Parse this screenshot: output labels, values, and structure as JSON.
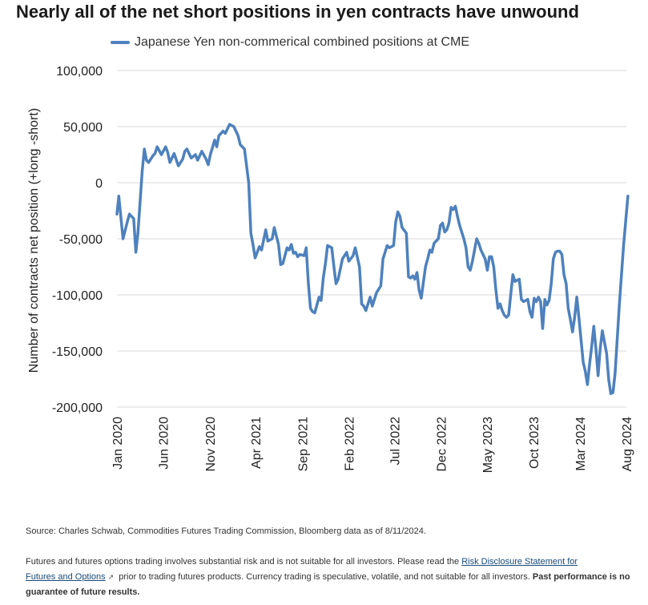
{
  "title": "Nearly all of the net short positions in yen contracts have unwound",
  "legend": "Japanese Yen non-commerical combined positions at CME",
  "source": "Source: Charles Schwab, Commodities Futures Trading Commission, Bloomberg data as of 8/11/2024.",
  "disclaimer": {
    "text1": "Futures and futures options trading involves substantial risk and is not suitable for all investors. Please read the ",
    "link1": "Risk Disclosure Statement for",
    "link2": "Futures and Options",
    "text2": " prior to trading futures products. Currency trading is speculative, volatile, and not suitable for all investors. ",
    "bold": "Past performance is no guarantee of future results.",
    "ext_icon": "external-link-icon"
  },
  "colors": {
    "line": "#4e81bd",
    "grid": "#d9d9d9"
  },
  "chart_data": {
    "type": "line",
    "ylabel": "Number of contracts net position (+long  -short)",
    "ylim": [
      -200000,
      100000
    ],
    "yticks": [
      {
        "v": 100000,
        "label": "100,000"
      },
      {
        "v": 50000,
        "label": "50,000"
      },
      {
        "v": 0,
        "label": "0"
      },
      {
        "v": -50000,
        "label": "-50,000"
      },
      {
        "v": -100000,
        "label": "-100,000"
      },
      {
        "v": -150000,
        "label": "-150,000"
      },
      {
        "v": -200000,
        "label": "-200,000"
      }
    ],
    "xrange": [
      "2020-01",
      "2024-08"
    ],
    "xticks": [
      {
        "date": "2020-01",
        "label": "Jan 2020"
      },
      {
        "date": "2020-06",
        "label": "Jun 2020"
      },
      {
        "date": "2020-11",
        "label": "Nov 2020"
      },
      {
        "date": "2021-04",
        "label": "Apr 2021"
      },
      {
        "date": "2021-09",
        "label": "Sep 2021"
      },
      {
        "date": "2022-02",
        "label": "Feb 2022"
      },
      {
        "date": "2022-07",
        "label": "Jul 2022"
      },
      {
        "date": "2022-12",
        "label": "Dec 2022"
      },
      {
        "date": "2023-05",
        "label": "May 2023"
      },
      {
        "date": "2023-10",
        "label": "Oct 2023"
      },
      {
        "date": "2024-03",
        "label": "Mar 2024"
      },
      {
        "date": "2024-08",
        "label": "Aug 2024"
      }
    ],
    "grid": "horizontal",
    "legend_position": "top",
    "series": [
      {
        "name": "Japanese Yen non-commerical combined positions at CME",
        "points": [
          [
            "2020-01-01",
            -28000
          ],
          [
            "2020-01-07",
            -12000
          ],
          [
            "2020-01-21",
            -50000
          ],
          [
            "2020-02-04",
            -35000
          ],
          [
            "2020-02-11",
            -28000
          ],
          [
            "2020-02-25",
            -32000
          ],
          [
            "2020-03-03",
            -62000
          ],
          [
            "2020-03-10",
            -45000
          ],
          [
            "2020-03-24",
            10000
          ],
          [
            "2020-03-31",
            30000
          ],
          [
            "2020-04-07",
            20000
          ],
          [
            "2020-04-14",
            18000
          ],
          [
            "2020-04-28",
            24000
          ],
          [
            "2020-05-05",
            26000
          ],
          [
            "2020-05-12",
            32000
          ],
          [
            "2020-05-26",
            25000
          ],
          [
            "2020-06-09",
            32000
          ],
          [
            "2020-06-16",
            27000
          ],
          [
            "2020-06-23",
            18000
          ],
          [
            "2020-07-07",
            26000
          ],
          [
            "2020-07-21",
            15000
          ],
          [
            "2020-08-04",
            21000
          ],
          [
            "2020-08-11",
            28000
          ],
          [
            "2020-08-18",
            30000
          ],
          [
            "2020-09-01",
            22000
          ],
          [
            "2020-09-15",
            25000
          ],
          [
            "2020-09-22",
            20000
          ],
          [
            "2020-10-06",
            28000
          ],
          [
            "2020-10-20",
            21000
          ],
          [
            "2020-10-27",
            16000
          ],
          [
            "2020-11-03",
            25000
          ],
          [
            "2020-11-17",
            38000
          ],
          [
            "2020-11-24",
            32000
          ],
          [
            "2020-12-01",
            42000
          ],
          [
            "2020-12-15",
            46000
          ],
          [
            "2020-12-22",
            44000
          ],
          [
            "2021-01-05",
            52000
          ],
          [
            "2021-01-19",
            50000
          ],
          [
            "2021-02-02",
            42000
          ],
          [
            "2021-02-09",
            34000
          ],
          [
            "2021-02-23",
            30000
          ],
          [
            "2021-03-09",
            0
          ],
          [
            "2021-03-16",
            -45000
          ],
          [
            "2021-03-23",
            -55000
          ],
          [
            "2021-03-30",
            -67000
          ],
          [
            "2021-04-13",
            -57000
          ],
          [
            "2021-04-20",
            -60000
          ],
          [
            "2021-05-04",
            -42000
          ],
          [
            "2021-05-11",
            -52000
          ],
          [
            "2021-05-25",
            -50000
          ],
          [
            "2021-06-01",
            -40000
          ],
          [
            "2021-06-15",
            -55000
          ],
          [
            "2021-06-22",
            -73000
          ],
          [
            "2021-06-29",
            -72000
          ],
          [
            "2021-07-13",
            -58000
          ],
          [
            "2021-07-20",
            -60000
          ],
          [
            "2021-07-27",
            -55000
          ],
          [
            "2021-08-03",
            -63000
          ],
          [
            "2021-08-10",
            -62000
          ],
          [
            "2021-08-17",
            -66000
          ],
          [
            "2021-08-24",
            -64000
          ],
          [
            "2021-09-07",
            -65000
          ],
          [
            "2021-09-14",
            -58000
          ],
          [
            "2021-09-21",
            -90000
          ],
          [
            "2021-09-28",
            -112000
          ],
          [
            "2021-10-05",
            -115000
          ],
          [
            "2021-10-12",
            -116000
          ],
          [
            "2021-10-26",
            -102000
          ],
          [
            "2021-11-02",
            -105000
          ],
          [
            "2021-11-09",
            -85000
          ],
          [
            "2021-11-16",
            -72000
          ],
          [
            "2021-11-23",
            -56000
          ],
          [
            "2021-12-07",
            -58000
          ],
          [
            "2021-12-14",
            -75000
          ],
          [
            "2021-12-21",
            -90000
          ],
          [
            "2021-12-28",
            -86000
          ],
          [
            "2022-01-11",
            -68000
          ],
          [
            "2022-01-25",
            -62000
          ],
          [
            "2022-02-01",
            -70000
          ],
          [
            "2022-02-15",
            -65000
          ],
          [
            "2022-02-22",
            -58000
          ],
          [
            "2022-03-08",
            -75000
          ],
          [
            "2022-03-15",
            -108000
          ],
          [
            "2022-03-22",
            -110000
          ],
          [
            "2022-03-29",
            -114000
          ],
          [
            "2022-04-12",
            -102000
          ],
          [
            "2022-04-19",
            -110000
          ],
          [
            "2022-05-03",
            -98000
          ],
          [
            "2022-05-10",
            -95000
          ],
          [
            "2022-05-17",
            -92000
          ],
          [
            "2022-05-24",
            -68000
          ],
          [
            "2022-06-07",
            -56000
          ],
          [
            "2022-06-14",
            -58000
          ],
          [
            "2022-06-28",
            -56000
          ],
          [
            "2022-07-05",
            -35000
          ],
          [
            "2022-07-12",
            -26000
          ],
          [
            "2022-07-19",
            -30000
          ],
          [
            "2022-07-26",
            -40000
          ],
          [
            "2022-08-09",
            -45000
          ],
          [
            "2022-08-16",
            -84000
          ],
          [
            "2022-08-23",
            -85000
          ],
          [
            "2022-08-30",
            -83000
          ],
          [
            "2022-09-06",
            -86000
          ],
          [
            "2022-09-13",
            -80000
          ],
          [
            "2022-09-20",
            -96000
          ],
          [
            "2022-09-27",
            -103000
          ],
          [
            "2022-10-11",
            -75000
          ],
          [
            "2022-10-18",
            -68000
          ],
          [
            "2022-10-25",
            -60000
          ],
          [
            "2022-11-01",
            -62000
          ],
          [
            "2022-11-08",
            -54000
          ],
          [
            "2022-11-22",
            -50000
          ],
          [
            "2022-11-29",
            -38000
          ],
          [
            "2022-12-06",
            -36000
          ],
          [
            "2022-12-13",
            -44000
          ],
          [
            "2022-12-20",
            -42000
          ],
          [
            "2022-12-27",
            -36000
          ],
          [
            "2023-01-03",
            -22000
          ],
          [
            "2023-01-10",
            -24000
          ],
          [
            "2023-01-17",
            -21000
          ],
          [
            "2023-01-24",
            -30000
          ],
          [
            "2023-01-31",
            -38000
          ],
          [
            "2023-02-14",
            -50000
          ],
          [
            "2023-02-21",
            -58000
          ],
          [
            "2023-02-28",
            -75000
          ],
          [
            "2023-03-07",
            -78000
          ],
          [
            "2023-03-14",
            -70000
          ],
          [
            "2023-03-28",
            -50000
          ],
          [
            "2023-04-04",
            -54000
          ],
          [
            "2023-04-11",
            -60000
          ],
          [
            "2023-04-18",
            -64000
          ],
          [
            "2023-04-25",
            -68000
          ],
          [
            "2023-05-02",
            -78000
          ],
          [
            "2023-05-09",
            -66000
          ],
          [
            "2023-05-16",
            -66000
          ],
          [
            "2023-05-23",
            -75000
          ],
          [
            "2023-05-30",
            -95000
          ],
          [
            "2023-06-06",
            -112000
          ],
          [
            "2023-06-13",
            -108000
          ],
          [
            "2023-06-20",
            -114000
          ],
          [
            "2023-06-27",
            -118000
          ],
          [
            "2023-07-04",
            -120000
          ],
          [
            "2023-07-11",
            -118000
          ],
          [
            "2023-07-18",
            -100000
          ],
          [
            "2023-07-25",
            -82000
          ],
          [
            "2023-08-01",
            -88000
          ],
          [
            "2023-08-08",
            -87000
          ],
          [
            "2023-08-15",
            -86000
          ],
          [
            "2023-08-22",
            -104000
          ],
          [
            "2023-08-29",
            -106000
          ],
          [
            "2023-09-05",
            -105000
          ],
          [
            "2023-09-12",
            -104000
          ],
          [
            "2023-09-19",
            -115000
          ],
          [
            "2023-09-26",
            -120000
          ],
          [
            "2023-10-03",
            -103000
          ],
          [
            "2023-10-10",
            -106000
          ],
          [
            "2023-10-17",
            -102000
          ],
          [
            "2023-10-24",
            -106000
          ],
          [
            "2023-10-31",
            -130000
          ],
          [
            "2023-11-07",
            -104000
          ],
          [
            "2023-11-14",
            -109000
          ],
          [
            "2023-11-21",
            -105000
          ],
          [
            "2023-11-28",
            -90000
          ],
          [
            "2023-12-05",
            -68000
          ],
          [
            "2023-12-12",
            -62000
          ],
          [
            "2023-12-19",
            -61000
          ],
          [
            "2023-12-26",
            -61000
          ],
          [
            "2024-01-02",
            -64000
          ],
          [
            "2024-01-09",
            -82000
          ],
          [
            "2024-01-16",
            -90000
          ],
          [
            "2024-01-23",
            -112000
          ],
          [
            "2024-01-30",
            -122000
          ],
          [
            "2024-02-06",
            -133000
          ],
          [
            "2024-02-13",
            -120000
          ],
          [
            "2024-02-20",
            -102000
          ],
          [
            "2024-02-27",
            -120000
          ],
          [
            "2024-03-05",
            -140000
          ],
          [
            "2024-03-12",
            -160000
          ],
          [
            "2024-03-19",
            -168000
          ],
          [
            "2024-03-26",
            -180000
          ],
          [
            "2024-04-02",
            -162000
          ],
          [
            "2024-04-09",
            -146000
          ],
          [
            "2024-04-16",
            -128000
          ],
          [
            "2024-04-23",
            -148000
          ],
          [
            "2024-04-30",
            -172000
          ],
          [
            "2024-05-07",
            -148000
          ],
          [
            "2024-05-14",
            -132000
          ],
          [
            "2024-05-21",
            -142000
          ],
          [
            "2024-05-28",
            -152000
          ],
          [
            "2024-06-04",
            -176000
          ],
          [
            "2024-06-11",
            -188000
          ],
          [
            "2024-06-18",
            -187000
          ],
          [
            "2024-06-25",
            -170000
          ],
          [
            "2024-07-09",
            -108000
          ],
          [
            "2024-07-16",
            -82000
          ],
          [
            "2024-07-23",
            -55000
          ],
          [
            "2024-08-06",
            -12000
          ]
        ]
      }
    ]
  }
}
